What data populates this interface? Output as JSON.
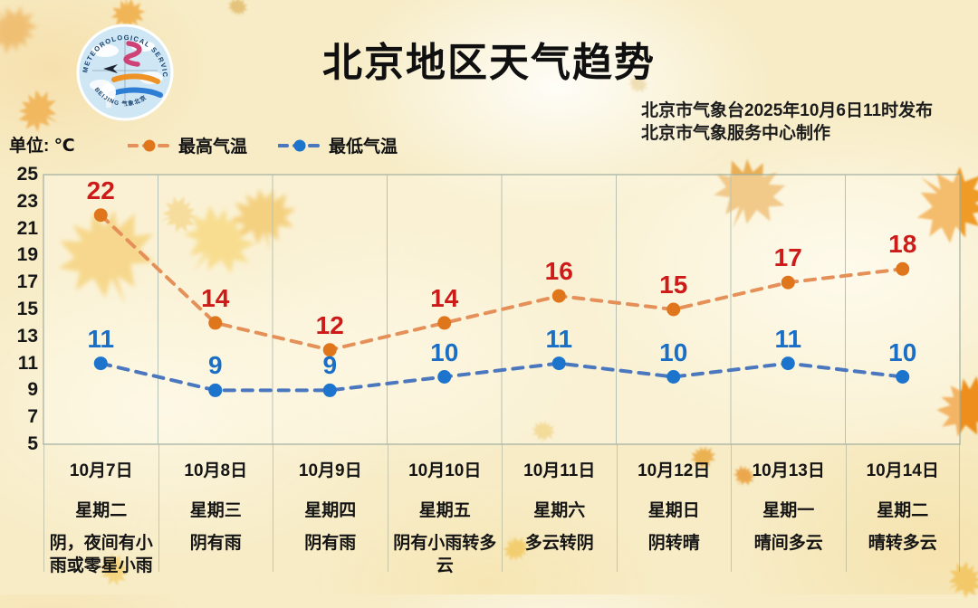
{
  "title": "北京地区天气趋势",
  "source": {
    "line1": "北京市气象台2025年10月6日11时发布",
    "line2": "北京市气象服务中心制作"
  },
  "unit_label": "单位: ℃",
  "legend": {
    "high": "最高气温",
    "low": "最低气温"
  },
  "logo": {
    "arc_top": "METEOROLOGICAL SERVICE",
    "arc_bottom": "BEIJING  气象北京"
  },
  "colors": {
    "title": "#101010",
    "plot_border": "#9fae9e",
    "grid_line": "#b7c2b4",
    "background": "#f7ecc6"
  },
  "chart_data": {
    "type": "line",
    "x": [
      "10月7日",
      "10月8日",
      "10月9日",
      "10月10日",
      "10月11日",
      "10月12日",
      "10月13日",
      "10月14日"
    ],
    "weekdays": [
      "星期二",
      "星期三",
      "星期四",
      "星期五",
      "星期六",
      "星期日",
      "星期一",
      "星期二"
    ],
    "weather": [
      "阴，夜间有小雨或零星小雨",
      "阴有雨",
      "阴有雨",
      "阴有小雨转多云",
      "多云转阴",
      "阴转晴",
      "晴间多云",
      "晴转多云"
    ],
    "series": [
      {
        "name": "最高气温",
        "values": [
          22,
          14,
          12,
          14,
          16,
          15,
          17,
          18
        ],
        "marker_color": "#e0761c",
        "line_color": "#e59058",
        "label_color": "#cc1b18"
      },
      {
        "name": "最低气温",
        "values": [
          11,
          9,
          9,
          10,
          11,
          10,
          11,
          10
        ],
        "marker_color": "#1c74cc",
        "line_color": "#4a77be",
        "label_color": "#1a6ec6"
      }
    ],
    "ylim": [
      5,
      25
    ],
    "yticks": [
      25,
      23,
      21,
      19,
      17,
      15,
      13,
      11,
      9,
      7,
      5
    ],
    "unit": "℃",
    "grid": "vertical-only",
    "legend_position": "top-left"
  }
}
